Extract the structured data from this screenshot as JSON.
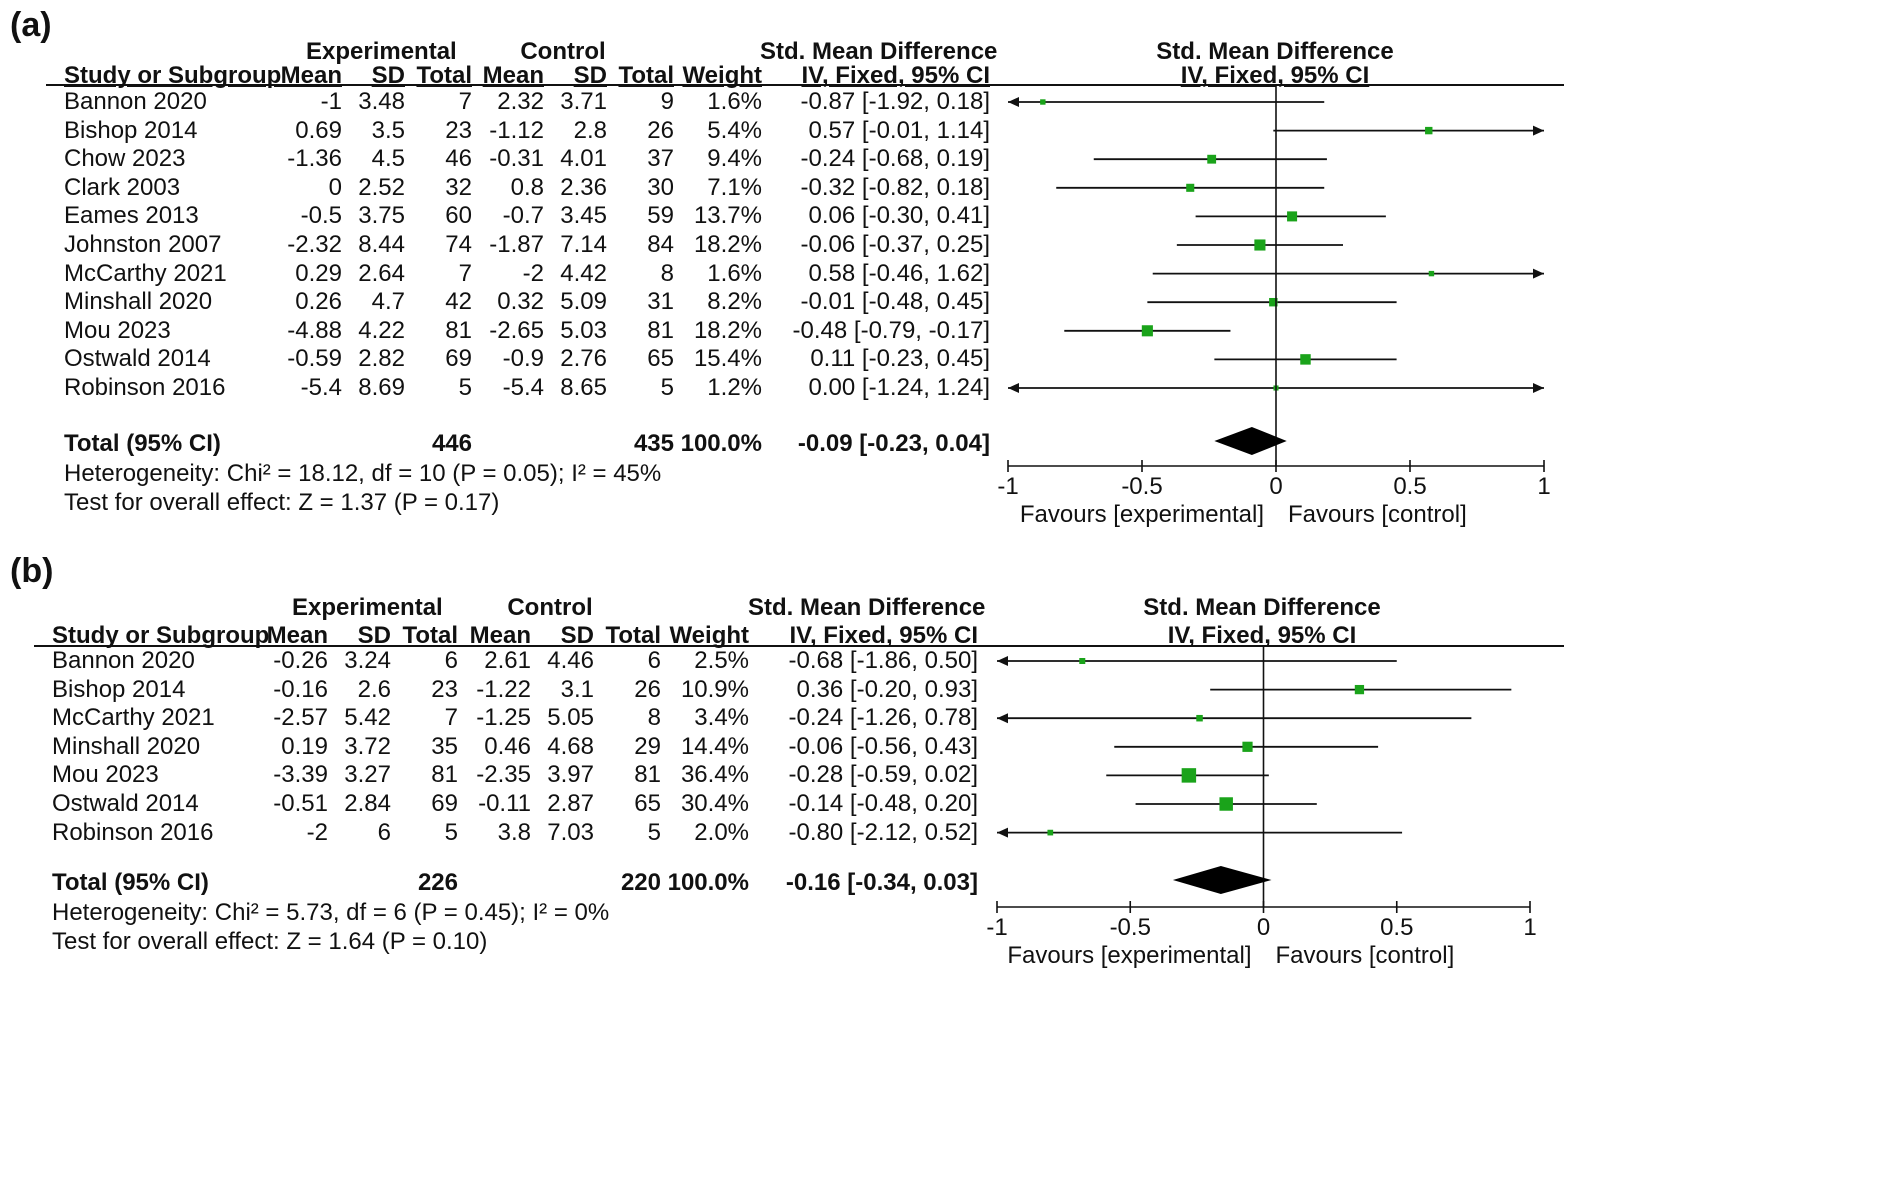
{
  "chart_data": [
    {
      "type": "forest",
      "panel_label": "(a)",
      "group_experimental": "Experimental",
      "group_control": "Control",
      "col_study": "Study or Subgroup",
      "col_mean": "Mean",
      "col_sd": "SD",
      "col_total": "Total",
      "col_weight": "Weight",
      "col_effect_title": "Std. Mean Difference",
      "col_effect_sub": "IV, Fixed, 95% CI",
      "plot_title": "Std. Mean Difference",
      "plot_sub": "IV, Fixed, 95% CI",
      "studies": [
        {
          "name": "Bannon 2020",
          "e_mean": "-1",
          "e_sd": "3.48",
          "e_total": "7",
          "c_mean": "2.32",
          "c_sd": "3.71",
          "c_total": "9",
          "weight": "1.6%",
          "ci_text": "-0.87 [-1.92, 0.18]",
          "est": -0.87,
          "lo": -1.92,
          "hi": 0.18,
          "w": 1.6
        },
        {
          "name": "Bishop 2014",
          "e_mean": "0.69",
          "e_sd": "3.5",
          "e_total": "23",
          "c_mean": "-1.12",
          "c_sd": "2.8",
          "c_total": "26",
          "weight": "5.4%",
          "ci_text": "0.57 [-0.01, 1.14]",
          "est": 0.57,
          "lo": -0.01,
          "hi": 1.14,
          "w": 5.4
        },
        {
          "name": "Chow 2023",
          "e_mean": "-1.36",
          "e_sd": "4.5",
          "e_total": "46",
          "c_mean": "-0.31",
          "c_sd": "4.01",
          "c_total": "37",
          "weight": "9.4%",
          "ci_text": "-0.24 [-0.68, 0.19]",
          "est": -0.24,
          "lo": -0.68,
          "hi": 0.19,
          "w": 9.4
        },
        {
          "name": "Clark 2003",
          "e_mean": "0",
          "e_sd": "2.52",
          "e_total": "32",
          "c_mean": "0.8",
          "c_sd": "2.36",
          "c_total": "30",
          "weight": "7.1%",
          "ci_text": "-0.32 [-0.82, 0.18]",
          "est": -0.32,
          "lo": -0.82,
          "hi": 0.18,
          "w": 7.1
        },
        {
          "name": "Eames 2013",
          "e_mean": "-0.5",
          "e_sd": "3.75",
          "e_total": "60",
          "c_mean": "-0.7",
          "c_sd": "3.45",
          "c_total": "59",
          "weight": "13.7%",
          "ci_text": "0.06 [-0.30, 0.41]",
          "est": 0.06,
          "lo": -0.3,
          "hi": 0.41,
          "w": 13.7
        },
        {
          "name": "Johnston 2007",
          "e_mean": "-2.32",
          "e_sd": "8.44",
          "e_total": "74",
          "c_mean": "-1.87",
          "c_sd": "7.14",
          "c_total": "84",
          "weight": "18.2%",
          "ci_text": "-0.06 [-0.37, 0.25]",
          "est": -0.06,
          "lo": -0.37,
          "hi": 0.25,
          "w": 18.2
        },
        {
          "name": "McCarthy 2021",
          "e_mean": "0.29",
          "e_sd": "2.64",
          "e_total": "7",
          "c_mean": "-2",
          "c_sd": "4.42",
          "c_total": "8",
          "weight": "1.6%",
          "ci_text": "0.58 [-0.46, 1.62]",
          "est": 0.58,
          "lo": -0.46,
          "hi": 1.62,
          "w": 1.6
        },
        {
          "name": "Minshall 2020",
          "e_mean": "0.26",
          "e_sd": "4.7",
          "e_total": "42",
          "c_mean": "0.32",
          "c_sd": "5.09",
          "c_total": "31",
          "weight": "8.2%",
          "ci_text": "-0.01 [-0.48, 0.45]",
          "est": -0.01,
          "lo": -0.48,
          "hi": 0.45,
          "w": 8.2
        },
        {
          "name": "Mou 2023",
          "e_mean": "-4.88",
          "e_sd": "4.22",
          "e_total": "81",
          "c_mean": "-2.65",
          "c_sd": "5.03",
          "c_total": "81",
          "weight": "18.2%",
          "ci_text": "-0.48 [-0.79, -0.17]",
          "est": -0.48,
          "lo": -0.79,
          "hi": -0.17,
          "w": 18.2
        },
        {
          "name": "Ostwald 2014",
          "e_mean": "-0.59",
          "e_sd": "2.82",
          "e_total": "69",
          "c_mean": "-0.9",
          "c_sd": "2.76",
          "c_total": "65",
          "weight": "15.4%",
          "ci_text": "0.11 [-0.23, 0.45]",
          "est": 0.11,
          "lo": -0.23,
          "hi": 0.45,
          "w": 15.4
        },
        {
          "name": "Robinson 2016",
          "e_mean": "-5.4",
          "e_sd": "8.69",
          "e_total": "5",
          "c_mean": "-5.4",
          "c_sd": "8.65",
          "c_total": "5",
          "weight": "1.2%",
          "ci_text": "0.00 [-1.24, 1.24]",
          "est": 0.0,
          "lo": -1.24,
          "hi": 1.24,
          "w": 1.2
        }
      ],
      "total": {
        "label": "Total (95% CI)",
        "e_total": "446",
        "c_total": "435",
        "weight": "100.0%",
        "ci_text": "-0.09 [-0.23, 0.04]",
        "est": -0.09,
        "lo": -0.23,
        "hi": 0.04
      },
      "heterogeneity": "Heterogeneity: Chi² = 18.12, df = 10 (P = 0.05); I² = 45%",
      "overall_effect": "Test for overall effect: Z = 1.37 (P = 0.17)",
      "xlim": [
        -1,
        1
      ],
      "ticks": [
        -1,
        -0.5,
        0,
        0.5,
        1
      ],
      "tick_labels": [
        "-1",
        "-0.5",
        "0",
        "0.5",
        "1"
      ],
      "favours_left": "Favours [experimental]",
      "favours_right": "Favours [control]",
      "marker_color": "#1aa31a",
      "diamond_color": "#000000"
    },
    {
      "type": "forest",
      "panel_label": "(b)",
      "group_experimental": "Experimental",
      "group_control": "Control",
      "col_study": "Study or Subgroup",
      "col_mean": "Mean",
      "col_sd": "SD",
      "col_total": "Total",
      "col_weight": "Weight",
      "col_effect_title": "Std. Mean Difference",
      "col_effect_sub": "IV, Fixed, 95% CI",
      "plot_title": "Std. Mean Difference",
      "plot_sub": "IV, Fixed, 95% CI",
      "studies": [
        {
          "name": "Bannon 2020",
          "e_mean": "-0.26",
          "e_sd": "3.24",
          "e_total": "6",
          "c_mean": "2.61",
          "c_sd": "4.46",
          "c_total": "6",
          "weight": "2.5%",
          "ci_text": "-0.68 [-1.86, 0.50]",
          "est": -0.68,
          "lo": -1.86,
          "hi": 0.5,
          "w": 2.5
        },
        {
          "name": "Bishop 2014",
          "e_mean": "-0.16",
          "e_sd": "2.6",
          "e_total": "23",
          "c_mean": "-1.22",
          "c_sd": "3.1",
          "c_total": "26",
          "weight": "10.9%",
          "ci_text": "0.36 [-0.20, 0.93]",
          "est": 0.36,
          "lo": -0.2,
          "hi": 0.93,
          "w": 10.9
        },
        {
          "name": "McCarthy 2021",
          "e_mean": "-2.57",
          "e_sd": "5.42",
          "e_total": "7",
          "c_mean": "-1.25",
          "c_sd": "5.05",
          "c_total": "8",
          "weight": "3.4%",
          "ci_text": "-0.24 [-1.26, 0.78]",
          "est": -0.24,
          "lo": -1.26,
          "hi": 0.78,
          "w": 3.4
        },
        {
          "name": "Minshall 2020",
          "e_mean": "0.19",
          "e_sd": "3.72",
          "e_total": "35",
          "c_mean": "0.46",
          "c_sd": "4.68",
          "c_total": "29",
          "weight": "14.4%",
          "ci_text": "-0.06 [-0.56, 0.43]",
          "est": -0.06,
          "lo": -0.56,
          "hi": 0.43,
          "w": 14.4
        },
        {
          "name": "Mou 2023",
          "e_mean": "-3.39",
          "e_sd": "3.27",
          "e_total": "81",
          "c_mean": "-2.35",
          "c_sd": "3.97",
          "c_total": "81",
          "weight": "36.4%",
          "ci_text": "-0.28 [-0.59, 0.02]",
          "est": -0.28,
          "lo": -0.59,
          "hi": 0.02,
          "w": 36.4
        },
        {
          "name": "Ostwald 2014",
          "e_mean": "-0.51",
          "e_sd": "2.84",
          "e_total": "69",
          "c_mean": "-0.11",
          "c_sd": "2.87",
          "c_total": "65",
          "weight": "30.4%",
          "ci_text": "-0.14 [-0.48, 0.20]",
          "est": -0.14,
          "lo": -0.48,
          "hi": 0.2,
          "w": 30.4
        },
        {
          "name": "Robinson 2016",
          "e_mean": "-2",
          "e_sd": "6",
          "e_total": "5",
          "c_mean": "3.8",
          "c_sd": "7.03",
          "c_total": "5",
          "weight": "2.0%",
          "ci_text": "-0.80 [-2.12, 0.52]",
          "est": -0.8,
          "lo": -2.12,
          "hi": 0.52,
          "w": 2.0
        }
      ],
      "total": {
        "label": "Total (95% CI)",
        "e_total": "226",
        "c_total": "220",
        "weight": "100.0%",
        "ci_text": "-0.16 [-0.34, 0.03]",
        "est": -0.16,
        "lo": -0.34,
        "hi": 0.03
      },
      "heterogeneity": "Heterogeneity: Chi² = 5.73, df = 6 (P = 0.45); I² = 0%",
      "overall_effect": "Test for overall effect: Z = 1.64 (P = 0.10)",
      "xlim": [
        -1,
        1
      ],
      "ticks": [
        -1,
        -0.5,
        0,
        0.5,
        1
      ],
      "tick_labels": [
        "-1",
        "-0.5",
        "0",
        "0.5",
        "1"
      ],
      "favours_left": "Favours [experimental]",
      "favours_right": "Favours [control]",
      "marker_color": "#1aa31a",
      "diamond_color": "#000000"
    }
  ]
}
